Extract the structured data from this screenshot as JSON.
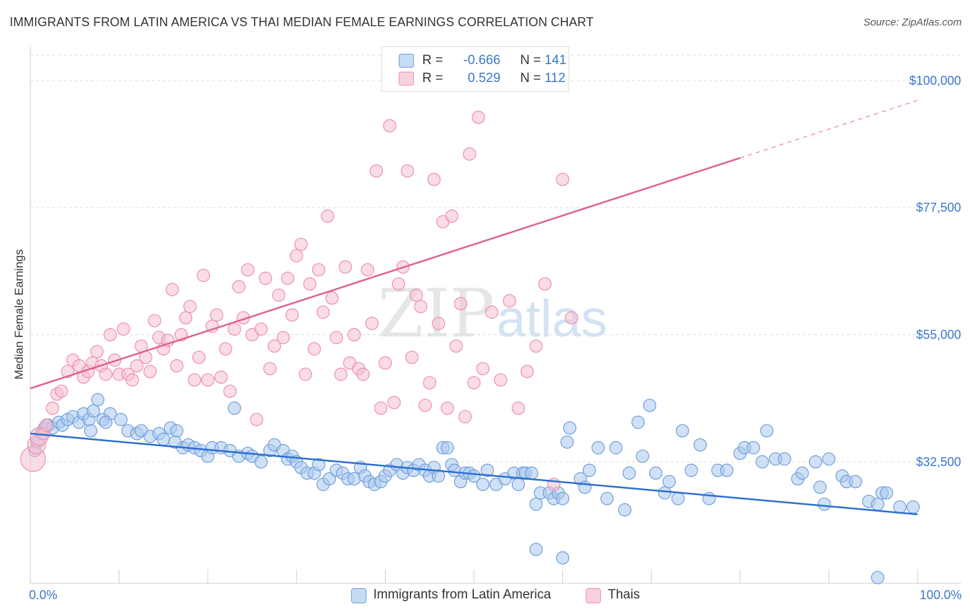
{
  "header": {
    "title": "IMMIGRANTS FROM LATIN AMERICA VS THAI MEDIAN FEMALE EARNINGS CORRELATION CHART",
    "source": "Source: ZipAtlas.com"
  },
  "watermark": {
    "part1": "ZIP",
    "part2": "atlas"
  },
  "legend": {
    "rows": [
      {
        "r_label": "R =",
        "r_value": "-0.666",
        "n_label": "N =",
        "n_value": "141"
      },
      {
        "r_label": "R =",
        "r_value": "0.529",
        "n_label": "N =",
        "n_value": "112"
      }
    ],
    "series": [
      "Immigrants from Latin America",
      "Thais"
    ]
  },
  "colors": {
    "blue_fill": "#a9c8ee",
    "blue_stroke": "#6f9fd8",
    "blue_line": "#2b6fd1",
    "pink_fill": "#f6bfd0",
    "pink_stroke": "#ec8fae",
    "pink_line": "#e0628c",
    "tick_label": "#3a78c9",
    "grid": "#dddddd"
  },
  "chart_data": {
    "type": "scatter",
    "title": "IMMIGRANTS FROM LATIN AMERICA VS THAI MEDIAN FEMALE EARNINGS CORRELATION CHART",
    "xlabel": "",
    "ylabel": "Median Female Earnings",
    "xlim": [
      0,
      100
    ],
    "ylim": [
      11000,
      104500
    ],
    "x_tick_labels": [
      "0.0%",
      "100.0%"
    ],
    "y_ticks": [
      32500,
      55000,
      77500,
      100000
    ],
    "y_tick_labels": [
      "$32,500",
      "$55,000",
      "$77,500",
      "$100,000"
    ],
    "grid": "horizontal dashed",
    "legend_position": "top-center",
    "series": [
      {
        "name": "Immigrants from Latin America",
        "r": -0.666,
        "n": 141,
        "trend": {
          "x": [
            0,
            100
          ],
          "y": [
            37500,
            23200
          ]
        },
        "points": [
          [
            0.5,
            34500
          ],
          [
            0.8,
            36000
          ],
          [
            1.2,
            37500
          ],
          [
            1.6,
            38500
          ],
          [
            2.0,
            39000
          ],
          [
            2.5,
            38500
          ],
          [
            3.2,
            39500
          ],
          [
            3.6,
            39000
          ],
          [
            4.2,
            40000
          ],
          [
            4.8,
            40500
          ],
          [
            5.5,
            39500
          ],
          [
            6.0,
            41000
          ],
          [
            6.6,
            40000
          ],
          [
            7.1,
            41500
          ],
          [
            7.6,
            43500
          ],
          [
            6.8,
            38000
          ],
          [
            8.2,
            40000
          ],
          [
            9.0,
            41000
          ],
          [
            8.5,
            39500
          ],
          [
            10.2,
            40000
          ],
          [
            11.0,
            38000
          ],
          [
            12.0,
            37500
          ],
          [
            12.5,
            38000
          ],
          [
            13.5,
            37000
          ],
          [
            14.5,
            37500
          ],
          [
            15.0,
            36500
          ],
          [
            15.8,
            38500
          ],
          [
            16.5,
            38000
          ],
          [
            17.2,
            35000
          ],
          [
            17.8,
            35500
          ],
          [
            18.5,
            35000
          ],
          [
            19.2,
            34500
          ],
          [
            16.3,
            36000
          ],
          [
            20.0,
            33500
          ],
          [
            20.5,
            35000
          ],
          [
            21.5,
            35000
          ],
          [
            22.5,
            34500
          ],
          [
            23.0,
            42000
          ],
          [
            23.5,
            33500
          ],
          [
            24.5,
            34000
          ],
          [
            25.0,
            33500
          ],
          [
            26.0,
            32500
          ],
          [
            27.0,
            34500
          ],
          [
            27.5,
            35500
          ],
          [
            28.5,
            34500
          ],
          [
            29.0,
            33000
          ],
          [
            29.5,
            33500
          ],
          [
            30.0,
            32500
          ],
          [
            30.5,
            31500
          ],
          [
            31.2,
            30500
          ],
          [
            32.0,
            30500
          ],
          [
            32.5,
            32000
          ],
          [
            33.0,
            28500
          ],
          [
            33.7,
            29500
          ],
          [
            34.5,
            31000
          ],
          [
            35.2,
            30500
          ],
          [
            35.8,
            29500
          ],
          [
            36.5,
            29500
          ],
          [
            37.2,
            31500
          ],
          [
            37.7,
            30000
          ],
          [
            38.2,
            29000
          ],
          [
            38.8,
            28500
          ],
          [
            39.5,
            29000
          ],
          [
            40.0,
            30000
          ],
          [
            40.5,
            31000
          ],
          [
            41.3,
            32000
          ],
          [
            42.0,
            30500
          ],
          [
            42.5,
            31500
          ],
          [
            43.2,
            31000
          ],
          [
            43.8,
            32000
          ],
          [
            44.5,
            31000
          ],
          [
            45.0,
            30000
          ],
          [
            45.5,
            31500
          ],
          [
            46.0,
            30000
          ],
          [
            46.5,
            35000
          ],
          [
            47.0,
            35000
          ],
          [
            47.5,
            32000
          ],
          [
            47.8,
            31000
          ],
          [
            48.5,
            29000
          ],
          [
            49.0,
            30500
          ],
          [
            49.5,
            30500
          ],
          [
            50.0,
            30000
          ],
          [
            51.0,
            28500
          ],
          [
            51.5,
            31000
          ],
          [
            52.5,
            28500
          ],
          [
            53.5,
            29500
          ],
          [
            54.5,
            30500
          ],
          [
            55.0,
            28500
          ],
          [
            55.5,
            30500
          ],
          [
            55.8,
            30500
          ],
          [
            56.5,
            30500
          ],
          [
            57.0,
            25000
          ],
          [
            57.5,
            27000
          ],
          [
            58.5,
            27000
          ],
          [
            59.0,
            26000
          ],
          [
            59.5,
            27000
          ],
          [
            60.0,
            26000
          ],
          [
            60.5,
            36000
          ],
          [
            60.8,
            38500
          ],
          [
            62.0,
            29500
          ],
          [
            62.5,
            28000
          ],
          [
            63.0,
            31000
          ],
          [
            64.0,
            35000
          ],
          [
            65.0,
            26000
          ],
          [
            66.0,
            35000
          ],
          [
            67.0,
            24000
          ],
          [
            67.5,
            30500
          ],
          [
            68.5,
            39500
          ],
          [
            69.0,
            33500
          ],
          [
            69.8,
            42500
          ],
          [
            70.5,
            30500
          ],
          [
            71.5,
            27000
          ],
          [
            72.0,
            29000
          ],
          [
            73.0,
            26000
          ],
          [
            73.5,
            38000
          ],
          [
            74.5,
            31000
          ],
          [
            75.5,
            35500
          ],
          [
            76.5,
            26000
          ],
          [
            77.5,
            31000
          ],
          [
            78.5,
            31000
          ],
          [
            80.0,
            34000
          ],
          [
            80.5,
            35000
          ],
          [
            81.5,
            35000
          ],
          [
            82.5,
            32500
          ],
          [
            83.0,
            38000
          ],
          [
            84.0,
            33000
          ],
          [
            85.0,
            33000
          ],
          [
            86.5,
            29500
          ],
          [
            87.0,
            30500
          ],
          [
            88.5,
            32500
          ],
          [
            89.0,
            28000
          ],
          [
            89.5,
            25000
          ],
          [
            90.0,
            33000
          ],
          [
            91.5,
            30000
          ],
          [
            92.0,
            29000
          ],
          [
            93.0,
            29000
          ],
          [
            94.5,
            25500
          ],
          [
            95.5,
            25000
          ],
          [
            96.0,
            27000
          ],
          [
            96.5,
            27000
          ],
          [
            98.0,
            24500
          ],
          [
            99.5,
            24500
          ],
          [
            57.0,
            17000
          ],
          [
            60.0,
            15500
          ],
          [
            95.5,
            12000
          ]
        ]
      },
      {
        "name": "Thais",
        "r": 0.529,
        "n": 112,
        "trend": {
          "x": [
            0,
            100
          ],
          "y": [
            45500,
            96500
          ]
        },
        "points": [
          [
            0.3,
            33000
          ],
          [
            0.7,
            35500
          ],
          [
            1.0,
            37000
          ],
          [
            1.5,
            37500
          ],
          [
            1.8,
            39000
          ],
          [
            2.5,
            42000
          ],
          [
            3.0,
            44500
          ],
          [
            3.5,
            45000
          ],
          [
            4.2,
            48500
          ],
          [
            4.8,
            50500
          ],
          [
            5.5,
            49500
          ],
          [
            6.0,
            47500
          ],
          [
            6.5,
            48500
          ],
          [
            7.0,
            50000
          ],
          [
            7.5,
            52000
          ],
          [
            8.0,
            49500
          ],
          [
            8.5,
            48000
          ],
          [
            9.0,
            55000
          ],
          [
            9.5,
            50500
          ],
          [
            10.0,
            48000
          ],
          [
            10.5,
            56000
          ],
          [
            11.0,
            48000
          ],
          [
            11.5,
            47000
          ],
          [
            12.0,
            49500
          ],
          [
            12.5,
            53000
          ],
          [
            13.0,
            51000
          ],
          [
            13.5,
            48500
          ],
          [
            14.0,
            57500
          ],
          [
            14.5,
            54500
          ],
          [
            15.0,
            52500
          ],
          [
            15.5,
            54000
          ],
          [
            16.0,
            63000
          ],
          [
            16.5,
            49500
          ],
          [
            17.0,
            55000
          ],
          [
            17.5,
            58000
          ],
          [
            18.0,
            60000
          ],
          [
            18.5,
            47000
          ],
          [
            19.0,
            51000
          ],
          [
            19.5,
            65500
          ],
          [
            20.0,
            47000
          ],
          [
            20.5,
            56500
          ],
          [
            21.0,
            58500
          ],
          [
            21.5,
            47500
          ],
          [
            22.0,
            52500
          ],
          [
            22.5,
            45000
          ],
          [
            23.0,
            56000
          ],
          [
            23.5,
            63500
          ],
          [
            24.0,
            58000
          ],
          [
            24.5,
            66500
          ],
          [
            25.0,
            55000
          ],
          [
            25.5,
            40000
          ],
          [
            26.0,
            56000
          ],
          [
            26.5,
            65000
          ],
          [
            27.0,
            49000
          ],
          [
            27.5,
            53000
          ],
          [
            28.0,
            62000
          ],
          [
            28.5,
            54500
          ],
          [
            29.0,
            65000
          ],
          [
            29.5,
            58500
          ],
          [
            30.0,
            69000
          ],
          [
            30.5,
            71000
          ],
          [
            31.0,
            48000
          ],
          [
            31.5,
            64000
          ],
          [
            32.0,
            52500
          ],
          [
            32.5,
            66500
          ],
          [
            33.0,
            59000
          ],
          [
            33.5,
            76000
          ],
          [
            34.0,
            61500
          ],
          [
            34.5,
            54500
          ],
          [
            35.0,
            48000
          ],
          [
            35.5,
            67000
          ],
          [
            36.0,
            50000
          ],
          [
            36.5,
            55000
          ],
          [
            37.0,
            49000
          ],
          [
            37.5,
            48000
          ],
          [
            38.0,
            66500
          ],
          [
            38.5,
            57000
          ],
          [
            39.0,
            84000
          ],
          [
            39.5,
            42000
          ],
          [
            40.0,
            50000
          ],
          [
            40.5,
            92000
          ],
          [
            41.0,
            43000
          ],
          [
            41.5,
            64000
          ],
          [
            42.0,
            67000
          ],
          [
            42.5,
            84000
          ],
          [
            43.0,
            51000
          ],
          [
            43.5,
            62000
          ],
          [
            44.0,
            60000
          ],
          [
            44.5,
            42500
          ],
          [
            45.0,
            46500
          ],
          [
            45.5,
            82500
          ],
          [
            46.0,
            57000
          ],
          [
            46.5,
            75000
          ],
          [
            47.0,
            42000
          ],
          [
            47.5,
            76000
          ],
          [
            48.0,
            53000
          ],
          [
            48.5,
            60500
          ],
          [
            49.0,
            40500
          ],
          [
            49.5,
            87000
          ],
          [
            50.0,
            46500
          ],
          [
            50.5,
            93500
          ],
          [
            51.0,
            49000
          ],
          [
            52.0,
            59000
          ],
          [
            53.0,
            47000
          ],
          [
            54.0,
            61000
          ],
          [
            55.0,
            42000
          ],
          [
            56.0,
            48500
          ],
          [
            57.0,
            53000
          ],
          [
            58.0,
            64000
          ],
          [
            59.0,
            28500
          ],
          [
            60.0,
            82500
          ],
          [
            61.0,
            58000
          ]
        ]
      }
    ]
  }
}
